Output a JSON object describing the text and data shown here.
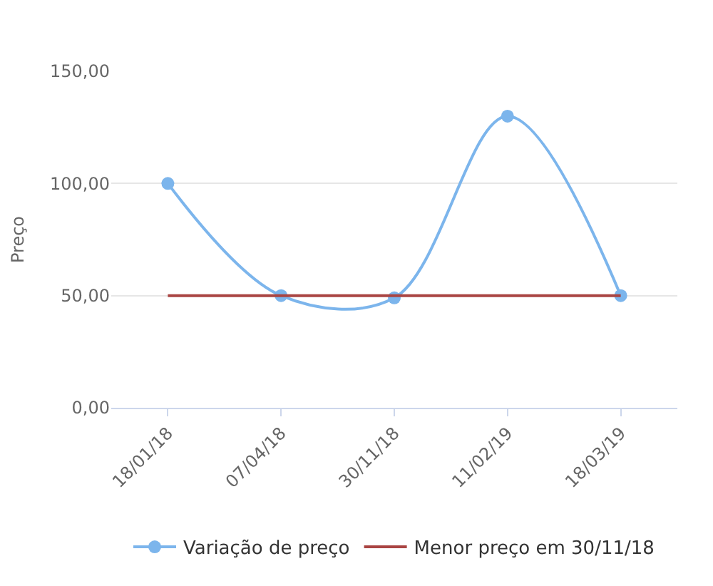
{
  "chart_data": {
    "type": "line",
    "ylabel": "Preço",
    "categories": [
      "18/01/18",
      "07/04/18",
      "30/11/18",
      "11/02/19",
      "18/03/19"
    ],
    "series": [
      {
        "name": "Variação de preço",
        "color": "#7cb5ec",
        "values": [
          100,
          50,
          49,
          130,
          50
        ],
        "marker": "circle"
      },
      {
        "name": "Menor preço em 30/11/18",
        "color": "#a94442",
        "values": [
          50,
          50,
          50,
          50,
          50
        ],
        "marker": "none"
      }
    ],
    "ylim": [
      0,
      150
    ],
    "yticks": [
      {
        "value": 0,
        "label": "0,00"
      },
      {
        "value": 50,
        "label": "50,00"
      },
      {
        "value": 100,
        "label": "100,00"
      },
      {
        "value": 150,
        "label": "150,00"
      }
    ],
    "grid": "y",
    "legend": "bottom"
  }
}
